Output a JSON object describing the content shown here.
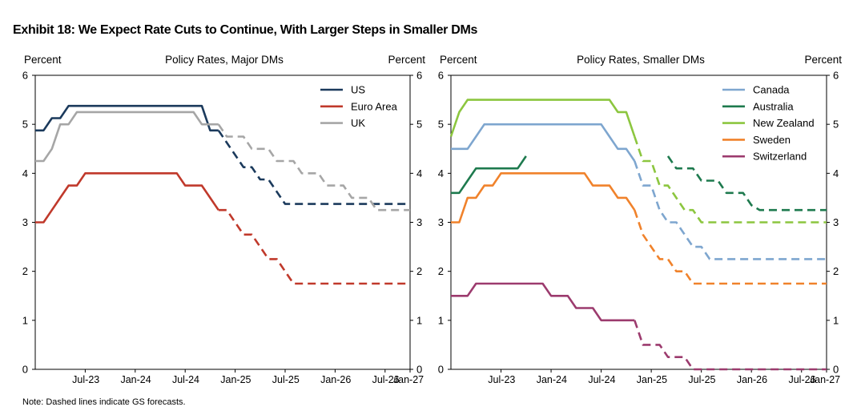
{
  "title": "Exhibit 18: We Expect Rate Cuts to Continue, With Larger Steps in Smaller DMs",
  "note": "Note: Dashed lines indicate GS forecasts.",
  "chart_data": [
    {
      "type": "line",
      "title": "Policy Rates, Major DMs",
      "ylabel_left": "Percent",
      "ylabel_right": "Percent",
      "ylim": [
        0,
        6
      ],
      "yticks": [
        0,
        1,
        2,
        3,
        4,
        5,
        6
      ],
      "xlim": [
        0,
        45
      ],
      "x_unit": "months since Jan-23",
      "xtick_labels": [
        "Jul-23",
        "Jan-24",
        "Jul-24",
        "Jan-25",
        "Jul-25",
        "Jan-26",
        "Jul-26",
        "Jan-27"
      ],
      "xtick_values": [
        6,
        12,
        18,
        24,
        30,
        36,
        42,
        48
      ],
      "legend_position": "top-right",
      "forecast_start": 22,
      "series": [
        {
          "name": "US",
          "color": "#1b3a5c",
          "points": [
            [
              0,
              4.875
            ],
            [
              1,
              4.875
            ],
            [
              2,
              5.125
            ],
            [
              3,
              5.125
            ],
            [
              4,
              5.375
            ],
            [
              20,
              5.375
            ],
            [
              21,
              4.875
            ],
            [
              22,
              4.875
            ],
            [
              23,
              4.625
            ],
            [
              24,
              4.375
            ],
            [
              25,
              4.125
            ],
            [
              26,
              4.125
            ],
            [
              27,
              3.875
            ],
            [
              28,
              3.875
            ],
            [
              29,
              3.625
            ],
            [
              30,
              3.375
            ],
            [
              45,
              3.375
            ]
          ]
        },
        {
          "name": "Euro Area",
          "color": "#c0392b",
          "points": [
            [
              0,
              3.0
            ],
            [
              1,
              3.0
            ],
            [
              2,
              3.25
            ],
            [
              3,
              3.5
            ],
            [
              4,
              3.75
            ],
            [
              5,
              3.75
            ],
            [
              6,
              4.0
            ],
            [
              17,
              4.0
            ],
            [
              18,
              3.75
            ],
            [
              20,
              3.75
            ],
            [
              21,
              3.5
            ],
            [
              22,
              3.25
            ],
            [
              23,
              3.25
            ],
            [
              24,
              3.0
            ],
            [
              25,
              2.75
            ],
            [
              26,
              2.75
            ],
            [
              27,
              2.5
            ],
            [
              28,
              2.25
            ],
            [
              29,
              2.25
            ],
            [
              30,
              2.0
            ],
            [
              31,
              1.75
            ],
            [
              45,
              1.75
            ]
          ]
        },
        {
          "name": "UK",
          "color": "#a6a6a6",
          "points": [
            [
              0,
              4.25
            ],
            [
              1,
              4.25
            ],
            [
              2,
              4.5
            ],
            [
              3,
              5.0
            ],
            [
              4,
              5.0
            ],
            [
              5,
              5.25
            ],
            [
              19,
              5.25
            ],
            [
              20,
              5.0
            ],
            [
              22,
              5.0
            ],
            [
              23,
              4.75
            ],
            [
              25,
              4.75
            ],
            [
              26,
              4.5
            ],
            [
              28,
              4.5
            ],
            [
              29,
              4.25
            ],
            [
              31,
              4.25
            ],
            [
              32,
              4.0
            ],
            [
              34,
              4.0
            ],
            [
              35,
              3.75
            ],
            [
              37,
              3.75
            ],
            [
              38,
              3.5
            ],
            [
              40,
              3.5
            ],
            [
              41,
              3.25
            ],
            [
              45,
              3.25
            ]
          ]
        }
      ]
    },
    {
      "type": "line",
      "title": "Policy Rates, Smaller DMs",
      "ylabel_left": "Percent",
      "ylabel_right": "Percent",
      "ylim": [
        0,
        6
      ],
      "yticks": [
        0,
        1,
        2,
        3,
        4,
        5,
        6
      ],
      "xlim": [
        0,
        45
      ],
      "x_unit": "months since Jan-23",
      "xtick_labels": [
        "Jul-23",
        "Jan-24",
        "Jul-24",
        "Jan-25",
        "Jul-25",
        "Jan-26",
        "Jul-26",
        "Jan-27"
      ],
      "xtick_values": [
        6,
        12,
        18,
        24,
        30,
        36,
        42,
        48
      ],
      "legend_position": "top-right",
      "forecast_start": 22,
      "series": [
        {
          "name": "Canada",
          "color": "#7ea6cf",
          "points": [
            [
              0,
              4.5
            ],
            [
              2,
              4.5
            ],
            [
              3,
              4.75
            ],
            [
              4,
              5.0
            ],
            [
              18,
              5.0
            ],
            [
              19,
              4.75
            ],
            [
              20,
              4.5
            ],
            [
              21,
              4.5
            ],
            [
              22,
              4.25
            ],
            [
              23,
              3.75
            ],
            [
              24,
              3.75
            ],
            [
              25,
              3.25
            ],
            [
              26,
              3.0
            ],
            [
              27,
              3.0
            ],
            [
              28,
              2.75
            ],
            [
              29,
              2.5
            ],
            [
              30,
              2.5
            ],
            [
              31,
              2.25
            ],
            [
              45,
              2.25
            ]
          ]
        },
        {
          "name": "Australia",
          "color": "#1e7a4e",
          "points": [
            [
              0,
              3.6
            ],
            [
              1,
              3.6
            ],
            [
              2,
              3.85
            ],
            [
              3,
              4.1
            ],
            [
              8,
              4.1
            ],
            [
              9,
              4.35
            ],
            [
              26,
              4.35
            ],
            [
              27,
              4.1
            ],
            [
              29,
              4.1
            ],
            [
              30,
              3.85
            ],
            [
              32,
              3.85
            ],
            [
              33,
              3.6
            ],
            [
              35,
              3.6
            ],
            [
              36,
              3.35
            ],
            [
              37,
              3.25
            ],
            [
              45,
              3.25
            ]
          ]
        },
        {
          "name": "New Zealand",
          "color": "#8cc63f",
          "points": [
            [
              0,
              4.75
            ],
            [
              1,
              5.25
            ],
            [
              2,
              5.5
            ],
            [
              19,
              5.5
            ],
            [
              20,
              5.25
            ],
            [
              21,
              5.25
            ],
            [
              22,
              4.75
            ],
            [
              23,
              4.25
            ],
            [
              24,
              4.25
            ],
            [
              25,
              3.75
            ],
            [
              26,
              3.75
            ],
            [
              27,
              3.5
            ],
            [
              28,
              3.25
            ],
            [
              29,
              3.25
            ],
            [
              30,
              3.0
            ],
            [
              45,
              3.0
            ]
          ]
        },
        {
          "name": "Sweden",
          "color": "#f0822b",
          "points": [
            [
              0,
              3.0
            ],
            [
              1,
              3.0
            ],
            [
              2,
              3.5
            ],
            [
              3,
              3.5
            ],
            [
              4,
              3.75
            ],
            [
              5,
              3.75
            ],
            [
              6,
              4.0
            ],
            [
              16,
              4.0
            ],
            [
              17,
              3.75
            ],
            [
              19,
              3.75
            ],
            [
              20,
              3.5
            ],
            [
              21,
              3.5
            ],
            [
              22,
              3.25
            ],
            [
              23,
              2.75
            ],
            [
              24,
              2.5
            ],
            [
              25,
              2.25
            ],
            [
              26,
              2.25
            ],
            [
              27,
              2.0
            ],
            [
              28,
              2.0
            ],
            [
              29,
              1.75
            ],
            [
              45,
              1.75
            ]
          ]
        },
        {
          "name": "Switzerland",
          "color": "#9c3b6e",
          "points": [
            [
              0,
              1.5
            ],
            [
              2,
              1.5
            ],
            [
              3,
              1.75
            ],
            [
              11,
              1.75
            ],
            [
              12,
              1.5
            ],
            [
              14,
              1.5
            ],
            [
              15,
              1.25
            ],
            [
              17,
              1.25
            ],
            [
              18,
              1.0
            ],
            [
              21,
              1.0
            ],
            [
              22,
              1.0
            ],
            [
              23,
              0.5
            ],
            [
              25,
              0.5
            ],
            [
              26,
              0.25
            ],
            [
              28,
              0.25
            ],
            [
              29,
              0.0
            ],
            [
              45,
              0.0
            ]
          ]
        }
      ]
    }
  ]
}
